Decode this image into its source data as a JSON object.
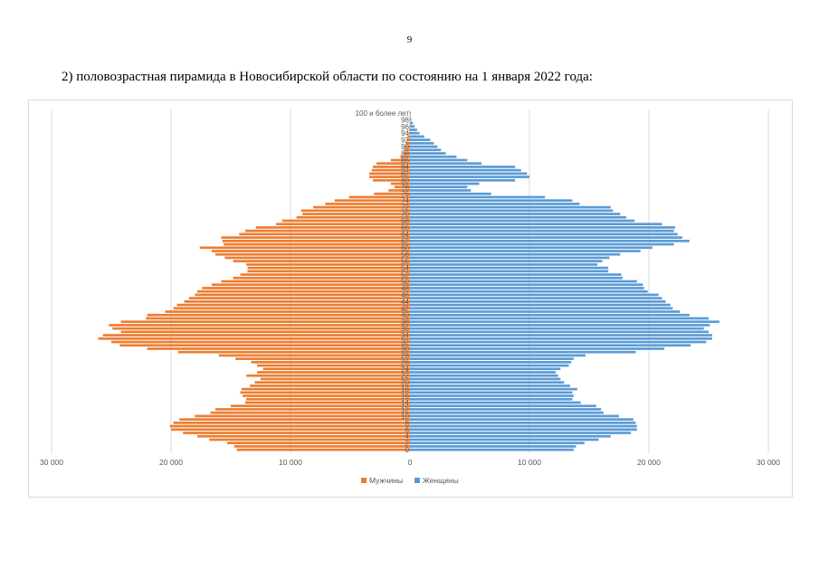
{
  "page": {
    "number": "9"
  },
  "caption": "2) половозрастная пирамида в Новосибирской области по состоянию на 1 января 2022 года:",
  "colors": {
    "male": "#ed7d31",
    "female": "#5b9bd5",
    "grid": "#d9d9d9",
    "axis_text": "#595959"
  },
  "chart_data": {
    "type": "bar",
    "orientation": "horizontal-pyramid",
    "title": "",
    "xlabel": "",
    "ylabel": "",
    "xlim": [
      -30000,
      30000
    ],
    "x_ticks": [
      -30000,
      -20000,
      -10000,
      0,
      10000,
      20000,
      30000
    ],
    "x_tick_labels": [
      "30 000",
      "20 000",
      "10 000",
      "0",
      "10 000",
      "20 000",
      "30 000"
    ],
    "grid": true,
    "legend_position": "bottom",
    "categories": [
      "0",
      "1",
      "2",
      "3",
      "4",
      "5",
      "6",
      "7",
      "8",
      "9",
      "10",
      "11",
      "12",
      "13",
      "14",
      "15",
      "16",
      "17",
      "18",
      "19",
      "20",
      "21",
      "22",
      "23",
      "24",
      "25",
      "26",
      "27",
      "28",
      "29",
      "30",
      "31",
      "32",
      "33",
      "34",
      "35",
      "36",
      "37",
      "38",
      "39",
      "40",
      "41",
      "42",
      "43",
      "44",
      "45",
      "46",
      "47",
      "48",
      "49",
      "50",
      "51",
      "52",
      "53",
      "54",
      "55",
      "56",
      "57",
      "58",
      "59",
      "60",
      "61",
      "62",
      "63",
      "64",
      "65",
      "66",
      "67",
      "68",
      "69",
      "70",
      "71",
      "72",
      "73",
      "74",
      "75",
      "76",
      "77",
      "78",
      "79",
      "80",
      "81",
      "82",
      "83",
      "84",
      "85",
      "86",
      "87",
      "88",
      "89",
      "90",
      "91",
      "92",
      "93",
      "94",
      "95",
      "96",
      "97",
      "98",
      "99",
      "100 и более лет"
    ],
    "category_labels_shown": [
      "0",
      "2",
      "4",
      "6",
      "8",
      "10",
      "12",
      "14",
      "16",
      "18",
      "20",
      "22",
      "24",
      "26",
      "28",
      "30",
      "32",
      "34",
      "36",
      "38",
      "40",
      "42",
      "44",
      "46",
      "48",
      "50",
      "52",
      "54",
      "56",
      "58",
      "60",
      "62",
      "64",
      "66",
      "68",
      "70",
      "72",
      "74",
      "76",
      "78",
      "80",
      "82",
      "84",
      "86",
      "88",
      "90",
      "92",
      "94",
      "96",
      "98",
      "100 и более лет"
    ],
    "series": [
      {
        "name": "Мужчины",
        "values": [
          14500,
          14700,
          15300,
          16800,
          17800,
          19000,
          20000,
          20100,
          19800,
          19300,
          18000,
          16700,
          16300,
          15000,
          13800,
          13700,
          14000,
          14200,
          14100,
          13400,
          13000,
          12500,
          13700,
          12800,
          12300,
          12800,
          13300,
          14600,
          16000,
          19400,
          22000,
          24300,
          25000,
          26100,
          25700,
          24200,
          24900,
          25200,
          24200,
          22100,
          22000,
          20500,
          19800,
          19500,
          18900,
          18500,
          18000,
          17800,
          17400,
          16600,
          15800,
          14800,
          14200,
          13600,
          13600,
          13700,
          14800,
          15500,
          16300,
          16600,
          17600,
          15600,
          15700,
          15800,
          14300,
          13800,
          12900,
          11200,
          10700,
          9500,
          9000,
          9100,
          8100,
          7100,
          6300,
          5100,
          3000,
          1800,
          1300,
          1600,
          3100,
          3400,
          3400,
          3200,
          3100,
          2800,
          1600,
          800,
          550,
          500,
          450,
          360,
          280,
          180,
          110,
          70,
          50,
          30,
          15,
          8,
          5
        ]
      },
      {
        "name": "Женщины",
        "values": [
          13700,
          13900,
          14600,
          15800,
          16800,
          18500,
          19000,
          19000,
          18900,
          18700,
          17500,
          16200,
          16000,
          15600,
          14300,
          13600,
          13700,
          13600,
          14000,
          13400,
          12900,
          12600,
          12400,
          12200,
          12600,
          13300,
          13500,
          13700,
          14700,
          18900,
          21300,
          23500,
          24800,
          25300,
          25300,
          25000,
          24600,
          25100,
          25900,
          25000,
          23400,
          22600,
          22000,
          21800,
          21400,
          21100,
          20800,
          19900,
          19600,
          19500,
          19000,
          17800,
          17700,
          16600,
          16600,
          15700,
          16100,
          16700,
          17600,
          19300,
          20300,
          22100,
          23400,
          22800,
          22400,
          22100,
          22200,
          21100,
          18800,
          18100,
          17600,
          17000,
          16800,
          14200,
          13600,
          11300,
          6800,
          5100,
          4800,
          5800,
          8800,
          10000,
          9800,
          9300,
          8800,
          6000,
          4800,
          3900,
          3000,
          2600,
          2300,
          2000,
          1700,
          1200,
          800,
          600,
          400,
          250,
          120,
          60,
          80
        ]
      }
    ]
  }
}
